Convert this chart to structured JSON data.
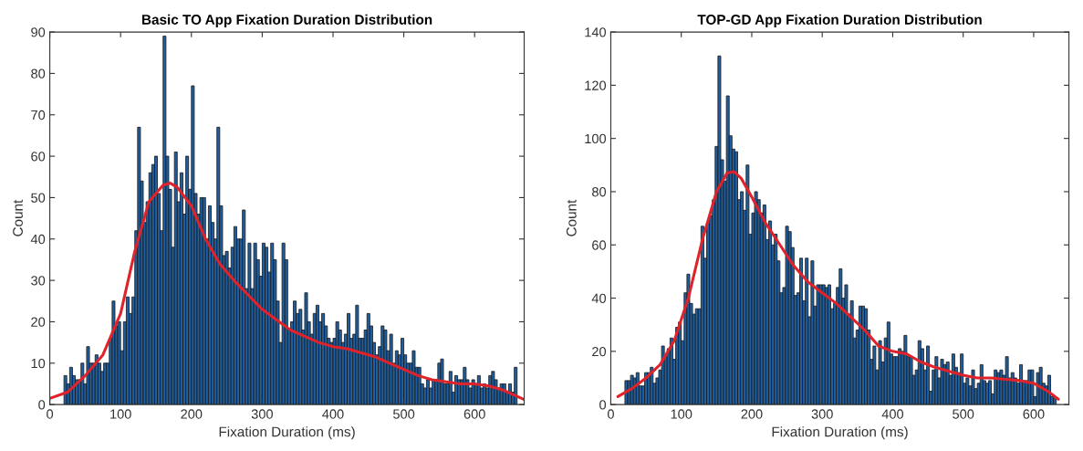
{
  "chart_data": [
    {
      "type": "histogram",
      "title": "Basic TO App Fixation Duration Distribution",
      "xlabel": "Fixation Duration (ms)",
      "ylabel": "Count",
      "color": "#1f5fa0",
      "grid": false,
      "bins": [
        20,
        24,
        28,
        32,
        36,
        40,
        44,
        48,
        52,
        56,
        60,
        64,
        68,
        72,
        76,
        80,
        84,
        88,
        92,
        96,
        100,
        104,
        108,
        112,
        116,
        120,
        124,
        128,
        132,
        136,
        140,
        144,
        148,
        152,
        156,
        160,
        164,
        168,
        172,
        176,
        180,
        184,
        188,
        192,
        196,
        200,
        204,
        208,
        212,
        216,
        220,
        224,
        228,
        232,
        236,
        240,
        244,
        248,
        252,
        256,
        260,
        264,
        268,
        272,
        276,
        280,
        284,
        288,
        292,
        296,
        300,
        304,
        308,
        312,
        316,
        320,
        324,
        328,
        332,
        336,
        340,
        344,
        348,
        352,
        356,
        360,
        364,
        368,
        372,
        376,
        380,
        384,
        388,
        392,
        396,
        400,
        404,
        408,
        412,
        416,
        420,
        424,
        428,
        432,
        436,
        440,
        444,
        448,
        452,
        456,
        460,
        464,
        468,
        472,
        476,
        480,
        484,
        488,
        492,
        496,
        500,
        504,
        508,
        512,
        516,
        520,
        524,
        528,
        532,
        536,
        540,
        544,
        548,
        552,
        556,
        560,
        564,
        568,
        572,
        576,
        580,
        584,
        588,
        592,
        596,
        600,
        604,
        608,
        612,
        616,
        620,
        624,
        628,
        632,
        636,
        640,
        644,
        648,
        652,
        656,
        660
      ],
      "values": [
        7,
        5,
        9,
        7,
        6,
        6,
        10,
        5,
        14,
        10,
        10,
        12,
        10,
        8,
        10,
        10,
        16,
        25,
        19,
        20,
        13,
        20,
        26,
        22,
        26,
        42,
        67,
        54,
        44,
        49,
        56,
        58,
        60,
        51,
        42,
        89,
        60,
        52,
        38,
        61,
        49,
        56,
        46,
        60,
        52,
        77,
        51,
        46,
        50,
        50,
        40,
        48,
        44,
        40,
        67,
        48,
        36,
        37,
        33,
        38,
        43,
        40,
        40,
        47,
        28,
        39,
        28,
        39,
        35,
        31,
        39,
        38,
        32,
        39,
        35,
        25,
        15,
        39,
        35,
        18,
        20,
        25,
        22,
        23,
        18,
        27,
        20,
        17,
        22,
        24,
        20,
        22,
        19,
        16,
        15,
        16,
        20,
        18,
        15,
        17,
        22,
        16,
        17,
        24,
        16,
        16,
        18,
        22,
        19,
        15,
        12,
        14,
        19,
        18,
        13,
        17,
        10,
        13,
        12,
        16,
        12,
        10,
        10,
        13,
        9,
        9,
        5,
        4,
        6,
        4,
        6,
        6,
        10,
        11,
        5,
        5,
        8,
        3,
        7,
        6,
        6,
        9,
        6,
        4,
        6,
        5,
        7,
        4,
        5,
        4,
        7,
        8,
        6,
        4,
        5,
        5,
        3,
        5,
        3,
        9
      ],
      "series": [
        {
          "type": "line",
          "color": "#e0232a",
          "x": [
            0,
            25,
            50,
            75,
            100,
            120,
            140,
            160,
            170,
            180,
            200,
            220,
            240,
            260,
            280,
            300,
            320,
            340,
            360,
            380,
            400,
            420,
            440,
            460,
            480,
            500,
            520,
            540,
            560,
            580,
            600,
            620,
            640,
            660,
            670
          ],
          "values": [
            1.5,
            3,
            7,
            12,
            22,
            37,
            49,
            53,
            53.5,
            52.5,
            48,
            40,
            34,
            30,
            26.5,
            23,
            20.5,
            18,
            16.5,
            15,
            14,
            13.5,
            12.5,
            11.5,
            10,
            8.5,
            7,
            6,
            5.5,
            5,
            5,
            4.5,
            3.5,
            2,
            1.2
          ]
        }
      ],
      "xlim": [
        0,
        670
      ],
      "ylim": [
        0,
        90
      ],
      "xticks": [
        0,
        100,
        200,
        300,
        400,
        500,
        600
      ],
      "yticks": [
        0,
        10,
        20,
        30,
        40,
        50,
        60,
        70,
        80,
        90
      ]
    },
    {
      "type": "histogram",
      "title": "TOP-GD App Fixation Duration Distribution",
      "xlabel": "Fixation Duration (ms)",
      "ylabel": "Count",
      "color": "#1f5fa0",
      "grid": false,
      "bins": [
        20,
        24,
        28,
        32,
        36,
        40,
        44,
        48,
        52,
        56,
        60,
        64,
        68,
        72,
        76,
        80,
        84,
        88,
        92,
        96,
        100,
        104,
        108,
        112,
        116,
        120,
        124,
        128,
        132,
        136,
        140,
        144,
        148,
        152,
        156,
        160,
        164,
        168,
        172,
        176,
        180,
        184,
        188,
        192,
        196,
        200,
        204,
        208,
        212,
        216,
        220,
        224,
        228,
        232,
        236,
        240,
        244,
        248,
        252,
        256,
        260,
        264,
        268,
        272,
        276,
        280,
        284,
        288,
        292,
        296,
        300,
        304,
        308,
        312,
        316,
        320,
        324,
        328,
        332,
        336,
        340,
        344,
        348,
        352,
        356,
        360,
        364,
        368,
        372,
        376,
        380,
        384,
        388,
        392,
        396,
        400,
        404,
        408,
        412,
        416,
        420,
        424,
        428,
        432,
        436,
        440,
        444,
        448,
        452,
        456,
        460,
        464,
        468,
        472,
        476,
        480,
        484,
        488,
        492,
        496,
        500,
        504,
        508,
        512,
        516,
        520,
        524,
        528,
        532,
        536,
        540,
        544,
        548,
        552,
        556,
        560,
        564,
        568,
        572,
        576,
        580,
        584,
        588,
        592,
        596,
        600,
        604,
        608,
        612,
        616,
        620,
        624,
        628,
        632
      ],
      "values": [
        9,
        9,
        11,
        10,
        12,
        7,
        7,
        12,
        12,
        14,
        8,
        10,
        13,
        22,
        18,
        21,
        25,
        17,
        29,
        31,
        24,
        42,
        49,
        38,
        34,
        36,
        36,
        67,
        55,
        68,
        71,
        77,
        97,
        131,
        92,
        84,
        116,
        101,
        96,
        95,
        77,
        80,
        73,
        90,
        64,
        72,
        80,
        77,
        72,
        75,
        62,
        69,
        60,
        64,
        54,
        42,
        44,
        67,
        65,
        59,
        41,
        42,
        55,
        39,
        55,
        33,
        54,
        37,
        45,
        45,
        45,
        44,
        45,
        36,
        38,
        44,
        51,
        40,
        45,
        34,
        39,
        25,
        28,
        37,
        37,
        36,
        28,
        17,
        22,
        13,
        24,
        16,
        25,
        31,
        19,
        18,
        18,
        21,
        20,
        26,
        18,
        18,
        11,
        13,
        24,
        21,
        13,
        22,
        5,
        13,
        18,
        10,
        17,
        15,
        16,
        11,
        19,
        14,
        12,
        19,
        8,
        10,
        7,
        13,
        6,
        8,
        15,
        9,
        8,
        9,
        4,
        13,
        12,
        13,
        11,
        18,
        10,
        12,
        10,
        8,
        15,
        9,
        9,
        13,
        13,
        3,
        12,
        14,
        8,
        7,
        11,
        3,
        3
      ],
      "series": [
        {
          "type": "line",
          "color": "#e0232a",
          "x": [
            10,
            30,
            50,
            70,
            90,
            110,
            130,
            150,
            165,
            175,
            185,
            200,
            220,
            240,
            260,
            280,
            300,
            320,
            340,
            360,
            380,
            400,
            420,
            440,
            460,
            480,
            500,
            520,
            540,
            560,
            580,
            600,
            620,
            635
          ],
          "values": [
            3,
            6,
            10,
            15,
            24,
            40,
            62,
            80,
            87,
            87.5,
            85,
            78,
            68,
            60,
            52,
            46,
            42,
            38,
            33,
            28,
            22,
            20,
            19,
            16,
            14,
            12.5,
            11,
            10,
            10,
            9.5,
            9,
            8,
            5,
            2
          ]
        }
      ],
      "xlim": [
        0,
        650
      ],
      "ylim": [
        0,
        140
      ],
      "xticks": [
        0,
        100,
        200,
        300,
        400,
        500,
        600
      ],
      "yticks": [
        0,
        20,
        40,
        60,
        80,
        100,
        120,
        140
      ]
    }
  ]
}
